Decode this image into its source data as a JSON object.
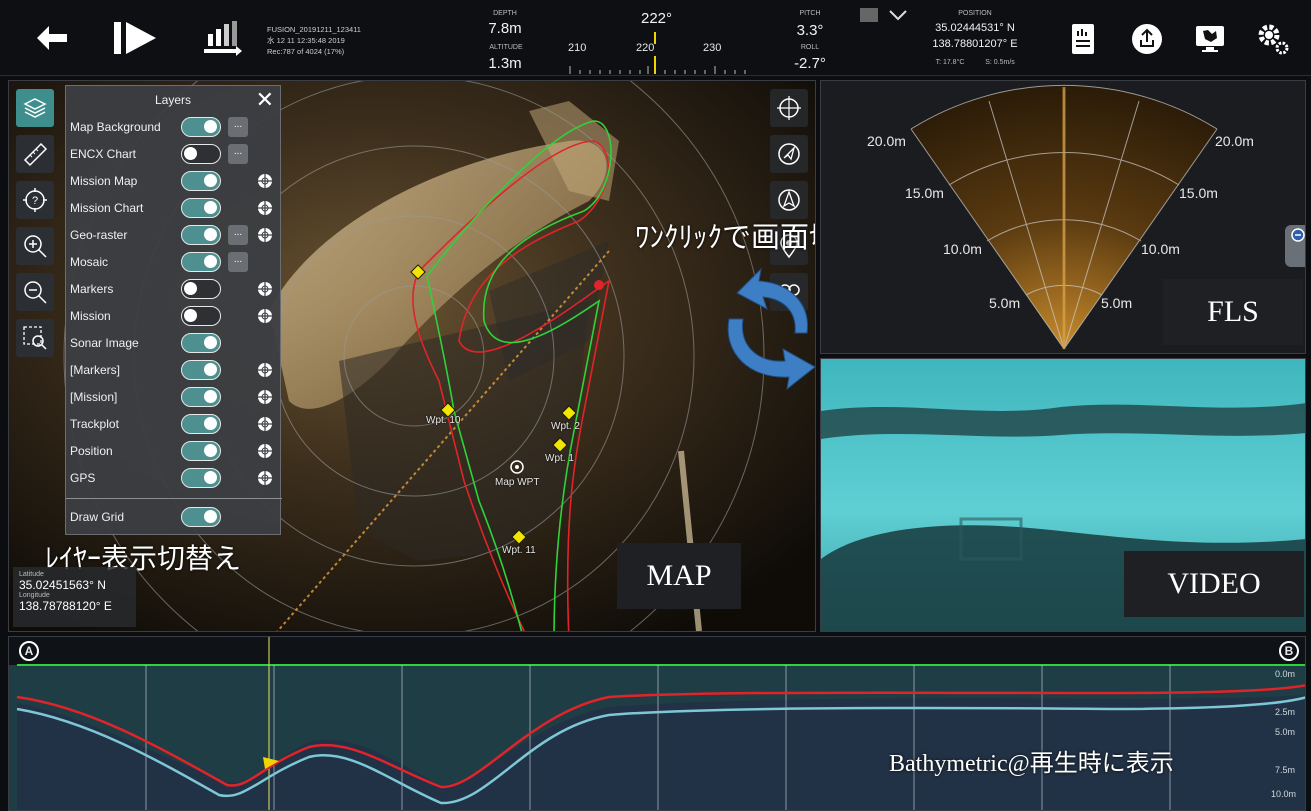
{
  "topbar": {
    "file_name": "FUSION_20191211_123411",
    "file_date": "水 12 11 12:35:48 2019",
    "record": "Rec:787 of 4024 (17%)",
    "depth_label": "DEPTH",
    "depth_value": "7.8m",
    "altitude_label": "ALTITUDE",
    "altitude_value": "1.3m",
    "heading": "222°",
    "compass_ticks": [
      "210",
      "220",
      "230"
    ],
    "pitch_label": "PITCH",
    "pitch_value": "3.3°",
    "roll_label": "ROLL",
    "roll_value": "-2.7°",
    "position_label": "POSITION",
    "position_lat": "35.02444531° N",
    "position_lon": "138.78801207° E",
    "temperature": "T: 17.8°C",
    "speed": "S: 0.5m/s"
  },
  "layers": {
    "title": "Layers",
    "close": "✕",
    "items": [
      {
        "name": "Map Background",
        "state": "on",
        "more": true,
        "target": false
      },
      {
        "name": "ENCX Chart",
        "state": "off",
        "more": true,
        "target": false
      },
      {
        "name": "Mission Map",
        "state": "on",
        "more": false,
        "target": true
      },
      {
        "name": "Mission Chart",
        "state": "on",
        "more": false,
        "target": true
      },
      {
        "name": "Geo-raster",
        "state": "on",
        "more": true,
        "target": true
      },
      {
        "name": "Mosaic",
        "state": "on",
        "more": true,
        "target": false
      },
      {
        "name": "Markers",
        "state": "off",
        "more": false,
        "target": true
      },
      {
        "name": "Mission",
        "state": "off",
        "more": false,
        "target": true
      },
      {
        "name": "Sonar Image",
        "state": "on",
        "more": false,
        "target": false
      },
      {
        "name": "[Markers]",
        "state": "on",
        "more": false,
        "target": true
      },
      {
        "name": "[Mission]",
        "state": "on",
        "more": false,
        "target": true
      },
      {
        "name": "Trackplot",
        "state": "on",
        "more": false,
        "target": true
      },
      {
        "name": "Position",
        "state": "on",
        "more": false,
        "target": true
      },
      {
        "name": "GPS",
        "state": "on",
        "more": false,
        "target": true
      }
    ],
    "draw_grid": "Draw Grid"
  },
  "map": {
    "latitude_label": "Latitude",
    "latitude_value": "35.02451563° N",
    "longitude_label": "Longitude",
    "longitude_value": "138.78788120° E",
    "waypoints": [
      "Wpt. 10",
      "Wpt. 2",
      "Wpt. 1",
      "Map WPT",
      "Wpt. 11"
    ],
    "caption_layers": "ﾚｲﾔｰ表示切替え",
    "caption_switch": "ﾜﾝｸﾘｯｸで画面切替",
    "panel_label": "MAP"
  },
  "fls": {
    "panel_label": "FLS",
    "range_labels": [
      "20.0m",
      "15.0m",
      "10.0m",
      "5.0m"
    ]
  },
  "video": {
    "panel_label": "VIDEO"
  },
  "bathy": {
    "marker_a": "A",
    "marker_b": "B",
    "depth_ticks": [
      "0.0m",
      "2.5m",
      "5.0m",
      "7.5m",
      "10.0m"
    ],
    "caption": "Bathymetric@再生時に表示"
  },
  "colors": {
    "accent_teal": "#4e8f8f",
    "track_red": "#e0242a",
    "track_green": "#2ed33b",
    "bathy_light": "#7ec8d6"
  }
}
